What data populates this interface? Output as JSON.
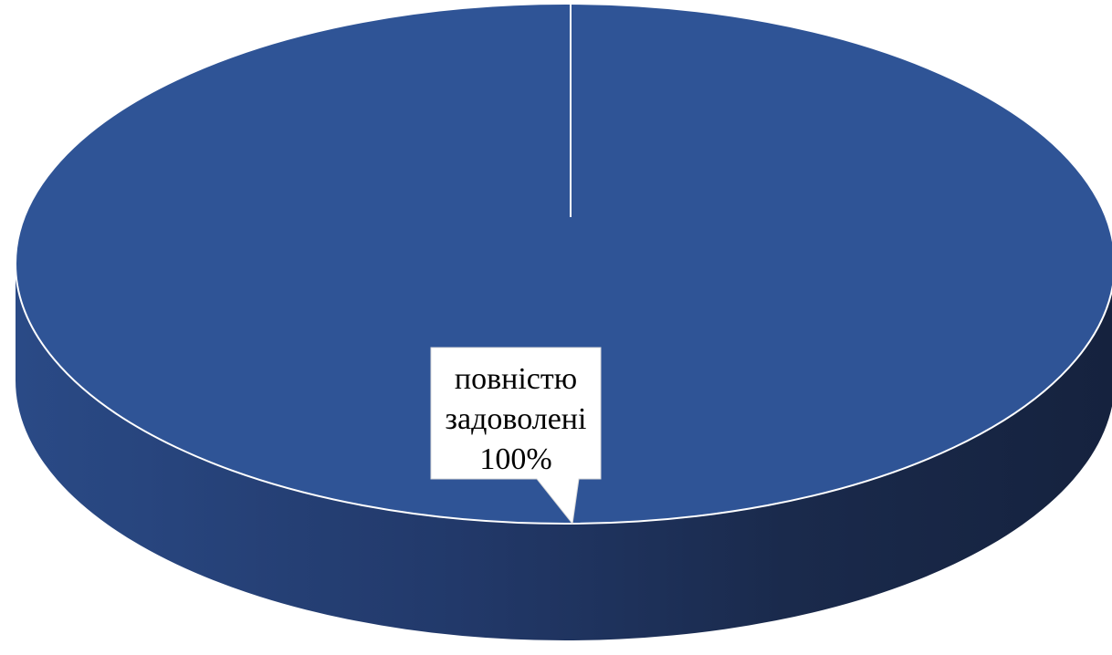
{
  "chart_data": {
    "type": "pie",
    "style": "3d",
    "title": "",
    "slices": [
      {
        "label": "повністю задоволені",
        "percent_label": "100%",
        "value": 100,
        "color": "#2f5496"
      }
    ],
    "data_label_lines": [
      "повністю",
      "задоволені",
      "100%"
    ]
  }
}
